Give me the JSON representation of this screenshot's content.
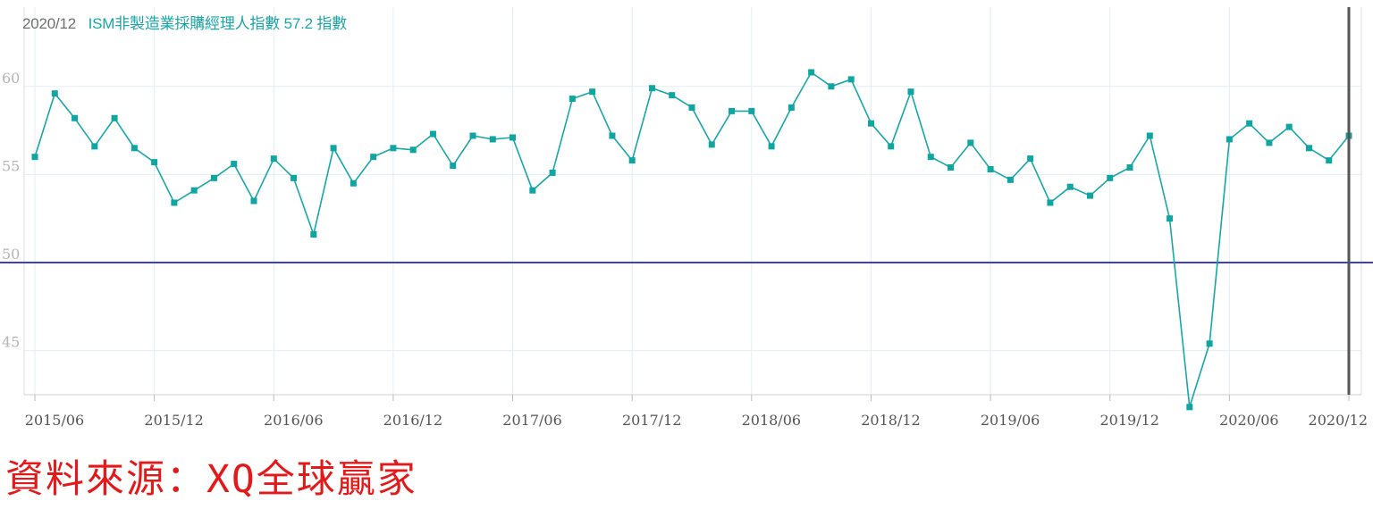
{
  "header": {
    "date": "2020/12",
    "series_label": "ISM非製造業採購經理人指數",
    "latest_value": "57.2",
    "unit": "指數"
  },
  "source_text": "資料來源：XQ全球贏家",
  "chart_data": {
    "type": "line",
    "x_tick_labels": [
      "2015/06",
      "2015/12",
      "2016/06",
      "2016/12",
      "2017/06",
      "2017/12",
      "2018/06",
      "2018/12",
      "2019/06",
      "2019/12",
      "2020/06",
      "2020/12"
    ],
    "y_tick_labels": [
      "45",
      "50",
      "55",
      "60"
    ],
    "ylim": [
      42.5,
      64.5
    ],
    "reference_line": 50,
    "colors": {
      "line": "#17a7a7",
      "marker": "#0fa5a0",
      "reference": "#3f3fbf",
      "cursor": "#555555"
    },
    "series": [
      {
        "x": [
          "2015/06",
          "2015/07",
          "2015/08",
          "2015/09",
          "2015/10",
          "2015/11",
          "2015/12",
          "2016/01",
          "2016/02",
          "2016/03",
          "2016/04",
          "2016/05",
          "2016/06",
          "2016/07",
          "2016/08",
          "2016/09",
          "2016/10",
          "2016/11",
          "2016/12",
          "2017/01",
          "2017/02",
          "2017/03",
          "2017/04",
          "2017/05",
          "2017/06",
          "2017/07",
          "2017/08",
          "2017/09",
          "2017/10",
          "2017/11",
          "2017/12",
          "2018/01",
          "2018/02",
          "2018/03",
          "2018/04",
          "2018/05",
          "2018/06",
          "2018/07",
          "2018/08",
          "2018/09",
          "2018/10",
          "2018/11",
          "2018/12",
          "2019/01",
          "2019/02",
          "2019/03",
          "2019/04",
          "2019/05",
          "2019/06",
          "2019/07",
          "2019/08",
          "2019/09",
          "2019/10",
          "2019/11",
          "2019/12",
          "2020/01",
          "2020/02",
          "2020/03",
          "2020/04",
          "2020/05",
          "2020/06",
          "2020/07",
          "2020/08",
          "2020/09",
          "2020/10",
          "2020/11",
          "2020/12"
        ],
        "values": [
          56.0,
          59.6,
          58.2,
          56.6,
          58.2,
          56.5,
          55.7,
          53.4,
          54.1,
          54.8,
          55.6,
          53.5,
          55.9,
          54.8,
          51.6,
          56.5,
          54.5,
          56.0,
          56.5,
          56.4,
          57.3,
          55.5,
          57.2,
          57.0,
          57.1,
          54.1,
          55.1,
          59.3,
          59.7,
          57.2,
          55.8,
          59.9,
          59.5,
          58.8,
          56.7,
          58.6,
          58.6,
          56.6,
          58.8,
          60.8,
          60.0,
          60.4,
          57.9,
          56.6,
          59.7,
          56.0,
          55.4,
          56.8,
          55.3,
          54.7,
          55.9,
          53.4,
          54.3,
          53.8,
          54.8,
          55.4,
          57.2,
          52.5,
          41.8,
          45.4,
          57.0,
          57.9,
          56.8,
          57.7,
          56.5,
          55.8,
          57.2
        ]
      }
    ]
  }
}
